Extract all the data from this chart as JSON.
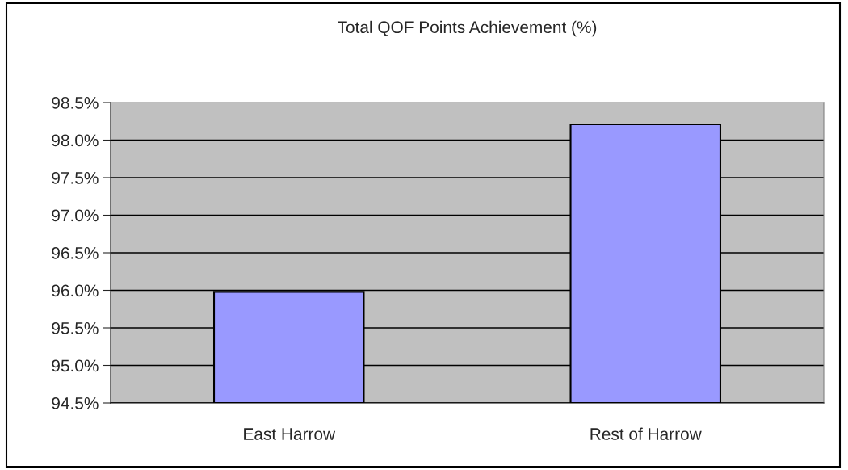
{
  "chart_data": {
    "type": "bar",
    "title": "Total QOF Points Achievement (%)",
    "categories": [
      "East Harrow",
      "Rest of Harrow"
    ],
    "values": [
      95.98,
      98.21
    ],
    "color": "#9999ff",
    "ylim": [
      94.5,
      98.5
    ],
    "yticks": [
      {
        "value": 94.5,
        "label": "94.5%"
      },
      {
        "value": 95.0,
        "label": "95.0%"
      },
      {
        "value": 95.5,
        "label": "95.5%"
      },
      {
        "value": 96.0,
        "label": "96.0%"
      },
      {
        "value": 96.5,
        "label": "96.5%"
      },
      {
        "value": 97.0,
        "label": "97.0%"
      },
      {
        "value": 97.5,
        "label": "97.5%"
      },
      {
        "value": 98.0,
        "label": "98.0%"
      },
      {
        "value": 98.5,
        "label": "98.5%"
      }
    ],
    "grid": "y",
    "legend": false
  }
}
